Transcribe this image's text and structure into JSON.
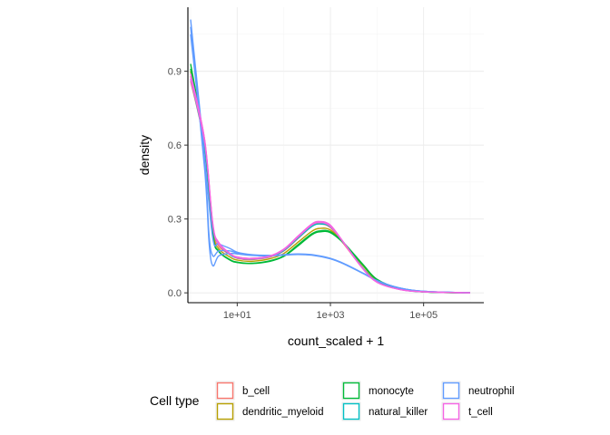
{
  "chart_data": {
    "type": "line",
    "subtype": "density",
    "xlabel": "count_scaled + 1",
    "ylabel": "density",
    "x_scale": "log10",
    "xlim": [
      1,
      1000000
    ],
    "ylim": [
      -0.04,
      1.16
    ],
    "x_ticks": [
      {
        "value": 10,
        "label": "1e+01"
      },
      {
        "value": 1000,
        "label": "1e+03"
      },
      {
        "value": 100000,
        "label": "1e+05"
      }
    ],
    "y_ticks": [
      {
        "value": 0.0,
        "label": "0.0"
      },
      {
        "value": 0.3,
        "label": "0.3"
      },
      {
        "value": 0.6,
        "label": "0.6"
      },
      {
        "value": 0.9,
        "label": "0.9"
      }
    ],
    "grid": true,
    "legend": {
      "title": "Cell type",
      "position": "bottom",
      "entries": [
        {
          "name": "b_cell",
          "color": "#F8766D"
        },
        {
          "name": "dendritic_myeloid",
          "color": "#B79F00"
        },
        {
          "name": "monocyte",
          "color": "#00BA38"
        },
        {
          "name": "natural_killer",
          "color": "#00BFC4"
        },
        {
          "name": "neutrophil",
          "color": "#619CFF"
        },
        {
          "name": "t_cell",
          "color": "#F564E3"
        }
      ]
    },
    "series": [
      {
        "name": "b_cell",
        "color": "#F8766D",
        "points": [
          [
            1,
            0.88
          ],
          [
            2,
            0.62
          ],
          [
            3,
            0.27
          ],
          [
            4,
            0.2
          ],
          [
            7,
            0.16
          ],
          [
            10,
            0.145
          ],
          [
            20,
            0.14
          ],
          [
            50,
            0.15
          ],
          [
            100,
            0.175
          ],
          [
            200,
            0.225
          ],
          [
            400,
            0.275
          ],
          [
            600,
            0.285
          ],
          [
            1000,
            0.27
          ],
          [
            2000,
            0.2
          ],
          [
            5000,
            0.1
          ],
          [
            10000,
            0.045
          ],
          [
            30000,
            0.015
          ],
          [
            100000,
            0.004
          ],
          [
            1000000,
            0.0
          ]
        ]
      },
      {
        "name": "b_cell",
        "color": "#F8766D",
        "points": [
          [
            1,
            0.86
          ],
          [
            2,
            0.6
          ],
          [
            3,
            0.26
          ],
          [
            4,
            0.19
          ],
          [
            7,
            0.155
          ],
          [
            10,
            0.14
          ],
          [
            20,
            0.135
          ],
          [
            50,
            0.145
          ],
          [
            100,
            0.17
          ],
          [
            200,
            0.22
          ],
          [
            400,
            0.27
          ],
          [
            600,
            0.28
          ],
          [
            1000,
            0.265
          ],
          [
            2000,
            0.195
          ],
          [
            5000,
            0.098
          ],
          [
            10000,
            0.044
          ],
          [
            30000,
            0.015
          ],
          [
            100000,
            0.004
          ],
          [
            1000000,
            0.0
          ]
        ]
      },
      {
        "name": "dendritic_myeloid",
        "color": "#B79F00",
        "points": [
          [
            1,
            0.9
          ],
          [
            2,
            0.6
          ],
          [
            3,
            0.25
          ],
          [
            4,
            0.18
          ],
          [
            7,
            0.145
          ],
          [
            10,
            0.133
          ],
          [
            20,
            0.128
          ],
          [
            50,
            0.138
          ],
          [
            100,
            0.16
          ],
          [
            200,
            0.205
          ],
          [
            400,
            0.25
          ],
          [
            600,
            0.262
          ],
          [
            1000,
            0.255
          ],
          [
            2000,
            0.2
          ],
          [
            5000,
            0.11
          ],
          [
            10000,
            0.05
          ],
          [
            30000,
            0.017
          ],
          [
            100000,
            0.004
          ],
          [
            1000000,
            0.0
          ]
        ]
      },
      {
        "name": "monocyte",
        "color": "#00BA38",
        "points": [
          [
            1,
            0.93
          ],
          [
            2,
            0.6
          ],
          [
            3,
            0.24
          ],
          [
            4,
            0.17
          ],
          [
            7,
            0.135
          ],
          [
            10,
            0.125
          ],
          [
            20,
            0.12
          ],
          [
            50,
            0.13
          ],
          [
            100,
            0.15
          ],
          [
            200,
            0.195
          ],
          [
            400,
            0.24
          ],
          [
            600,
            0.252
          ],
          [
            1000,
            0.248
          ],
          [
            2000,
            0.2
          ],
          [
            5000,
            0.115
          ],
          [
            10000,
            0.055
          ],
          [
            30000,
            0.018
          ],
          [
            100000,
            0.004
          ],
          [
            1000000,
            0.0
          ]
        ]
      },
      {
        "name": "monocyte",
        "color": "#00BA38",
        "points": [
          [
            1,
            0.91
          ],
          [
            2,
            0.59
          ],
          [
            3,
            0.235
          ],
          [
            4,
            0.168
          ],
          [
            7,
            0.133
          ],
          [
            10,
            0.123
          ],
          [
            20,
            0.119
          ],
          [
            50,
            0.128
          ],
          [
            100,
            0.148
          ],
          [
            200,
            0.19
          ],
          [
            400,
            0.236
          ],
          [
            600,
            0.248
          ],
          [
            1000,
            0.244
          ],
          [
            2000,
            0.198
          ],
          [
            5000,
            0.113
          ],
          [
            10000,
            0.054
          ],
          [
            30000,
            0.018
          ],
          [
            100000,
            0.004
          ],
          [
            1000000,
            0.0
          ]
        ]
      },
      {
        "name": "natural_killer",
        "color": "#00BFC4",
        "points": [
          [
            1,
            0.87
          ],
          [
            2,
            0.6
          ],
          [
            3,
            0.27
          ],
          [
            4,
            0.2
          ],
          [
            7,
            0.155
          ],
          [
            10,
            0.142
          ],
          [
            20,
            0.137
          ],
          [
            50,
            0.147
          ],
          [
            100,
            0.172
          ],
          [
            200,
            0.222
          ],
          [
            400,
            0.27
          ],
          [
            600,
            0.28
          ],
          [
            1000,
            0.268
          ],
          [
            2000,
            0.2
          ],
          [
            5000,
            0.1
          ],
          [
            10000,
            0.046
          ],
          [
            30000,
            0.015
          ],
          [
            100000,
            0.004
          ],
          [
            1000000,
            0.0
          ]
        ]
      },
      {
        "name": "neutrophil",
        "color": "#619CFF",
        "points": [
          [
            1,
            1.11
          ],
          [
            2,
            0.55
          ],
          [
            3,
            0.22
          ],
          [
            4,
            0.2
          ],
          [
            7,
            0.18
          ],
          [
            10,
            0.165
          ],
          [
            20,
            0.155
          ],
          [
            50,
            0.152
          ],
          [
            100,
            0.155
          ],
          [
            200,
            0.158
          ],
          [
            400,
            0.155
          ],
          [
            1000,
            0.14
          ],
          [
            2000,
            0.118
          ],
          [
            5000,
            0.08
          ],
          [
            10000,
            0.05
          ],
          [
            30000,
            0.02
          ],
          [
            100000,
            0.006
          ],
          [
            1000000,
            0.0
          ]
        ]
      },
      {
        "name": "neutrophil",
        "color": "#619CFF",
        "points": [
          [
            1,
            1.08
          ],
          [
            2,
            0.5
          ],
          [
            2.5,
            0.2
          ],
          [
            3,
            0.11
          ],
          [
            4,
            0.15
          ],
          [
            7,
            0.16
          ],
          [
            10,
            0.158
          ],
          [
            20,
            0.152
          ],
          [
            50,
            0.15
          ],
          [
            100,
            0.153
          ],
          [
            200,
            0.156
          ],
          [
            400,
            0.153
          ],
          [
            1000,
            0.138
          ],
          [
            2000,
            0.116
          ],
          [
            5000,
            0.079
          ],
          [
            10000,
            0.049
          ],
          [
            30000,
            0.02
          ],
          [
            100000,
            0.006
          ],
          [
            1000000,
            0.0
          ]
        ]
      },
      {
        "name": "neutrophil",
        "color": "#619CFF",
        "points": [
          [
            1,
            1.05
          ],
          [
            2,
            0.52
          ],
          [
            2.5,
            0.23
          ],
          [
            3,
            0.15
          ],
          [
            4,
            0.17
          ],
          [
            7,
            0.17
          ],
          [
            10,
            0.162
          ],
          [
            20,
            0.154
          ],
          [
            50,
            0.151
          ],
          [
            100,
            0.154
          ],
          [
            200,
            0.157
          ],
          [
            400,
            0.154
          ],
          [
            1000,
            0.139
          ],
          [
            2000,
            0.117
          ],
          [
            5000,
            0.08
          ],
          [
            10000,
            0.05
          ],
          [
            30000,
            0.02
          ],
          [
            100000,
            0.006
          ],
          [
            1000000,
            0.0
          ]
        ]
      },
      {
        "name": "t_cell",
        "color": "#F564E3",
        "points": [
          [
            1,
            0.89
          ],
          [
            2,
            0.62
          ],
          [
            3,
            0.28
          ],
          [
            4,
            0.205
          ],
          [
            7,
            0.16
          ],
          [
            10,
            0.145
          ],
          [
            20,
            0.14
          ],
          [
            50,
            0.15
          ],
          [
            100,
            0.178
          ],
          [
            200,
            0.23
          ],
          [
            400,
            0.28
          ],
          [
            600,
            0.29
          ],
          [
            1000,
            0.275
          ],
          [
            2000,
            0.2
          ],
          [
            5000,
            0.098
          ],
          [
            10000,
            0.044
          ],
          [
            30000,
            0.014
          ],
          [
            100000,
            0.004
          ],
          [
            1000000,
            0.0
          ]
        ]
      },
      {
        "name": "t_cell",
        "color": "#F564E3",
        "points": [
          [
            1,
            0.87
          ],
          [
            2,
            0.61
          ],
          [
            3,
            0.275
          ],
          [
            4,
            0.2
          ],
          [
            7,
            0.158
          ],
          [
            10,
            0.143
          ],
          [
            20,
            0.138
          ],
          [
            50,
            0.148
          ],
          [
            100,
            0.175
          ],
          [
            200,
            0.226
          ],
          [
            400,
            0.276
          ],
          [
            600,
            0.286
          ],
          [
            1000,
            0.27
          ],
          [
            2000,
            0.198
          ],
          [
            5000,
            0.097
          ],
          [
            10000,
            0.043
          ],
          [
            30000,
            0.014
          ],
          [
            100000,
            0.004
          ],
          [
            1000000,
            0.0
          ]
        ]
      }
    ]
  }
}
